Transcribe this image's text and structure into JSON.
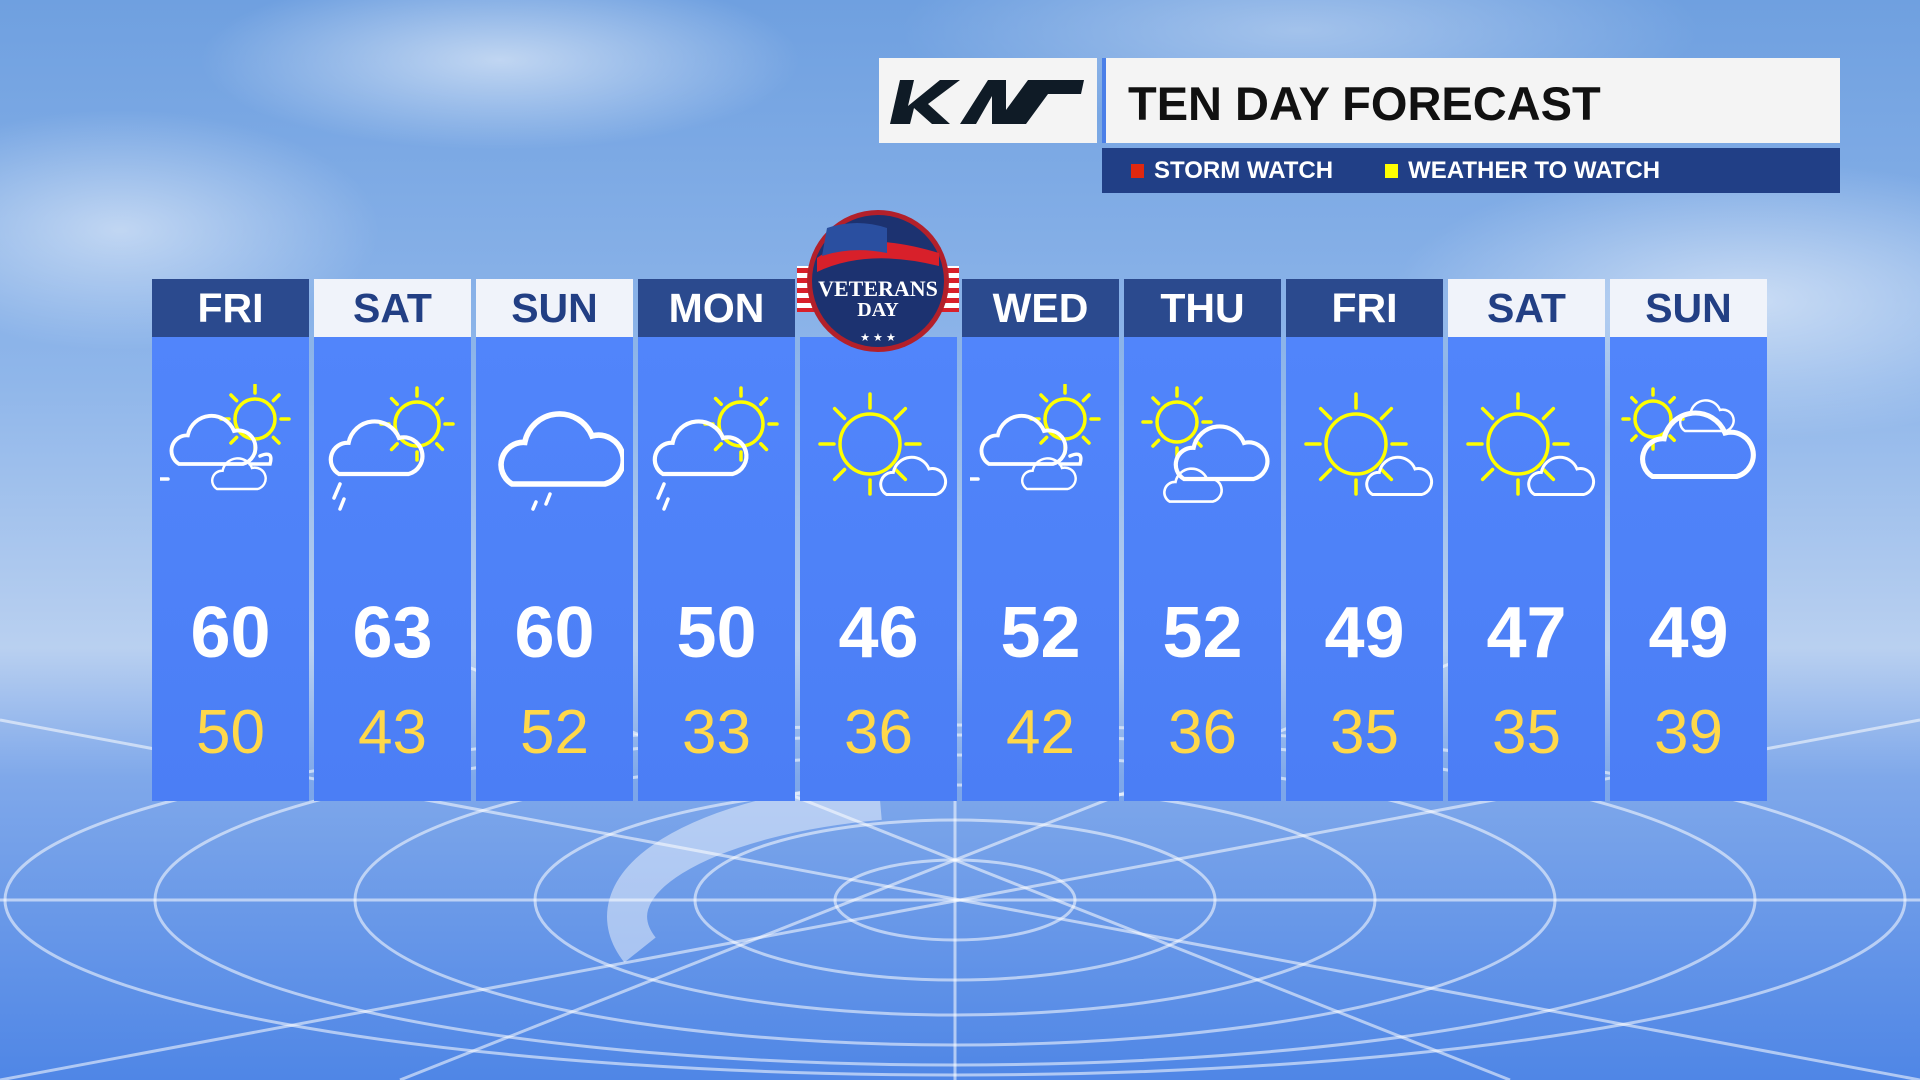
{
  "header": {
    "sponsor_logo": "KIA",
    "title": "TEN DAY FORECAST"
  },
  "legend": [
    {
      "label": "STORM WATCH",
      "color": "#e0280f"
    },
    {
      "label": "WEATHER TO WATCH",
      "color": "#ffff00"
    }
  ],
  "badge": {
    "line1": "VETERANS",
    "line2": "DAY",
    "stars": "★ ★ ★"
  },
  "colors": {
    "header_dark": "#2b4a8e",
    "header_light": "#f0f3fa",
    "column": "#5185fb",
    "low_temp": "#ffd84a"
  },
  "days": [
    {
      "day": "FRI",
      "style": "dark",
      "icon": "partly-cloudy-windy-icon",
      "high": "60",
      "low": "50"
    },
    {
      "day": "SAT",
      "style": "light",
      "icon": "partly-cloudy-showers-icon",
      "high": "63",
      "low": "43"
    },
    {
      "day": "SUN",
      "style": "light",
      "icon": "cloudy-drizzle-icon",
      "high": "60",
      "low": "52"
    },
    {
      "day": "MON",
      "style": "dark",
      "icon": "partly-cloudy-showers-icon",
      "high": "50",
      "low": "33"
    },
    {
      "day": "",
      "style": "none",
      "icon": "mostly-sunny-icon",
      "high": "46",
      "low": "36"
    },
    {
      "day": "WED",
      "style": "dark",
      "icon": "partly-cloudy-windy-icon",
      "high": "52",
      "low": "42"
    },
    {
      "day": "THU",
      "style": "dark",
      "icon": "partly-cloudy-icon",
      "high": "52",
      "low": "36"
    },
    {
      "day": "FRI",
      "style": "dark",
      "icon": "mostly-sunny-icon",
      "high": "49",
      "low": "35"
    },
    {
      "day": "SAT",
      "style": "light",
      "icon": "mostly-sunny-icon",
      "high": "47",
      "low": "35"
    },
    {
      "day": "SUN",
      "style": "light",
      "icon": "mostly-cloudy-icon",
      "high": "49",
      "low": "39"
    }
  ]
}
